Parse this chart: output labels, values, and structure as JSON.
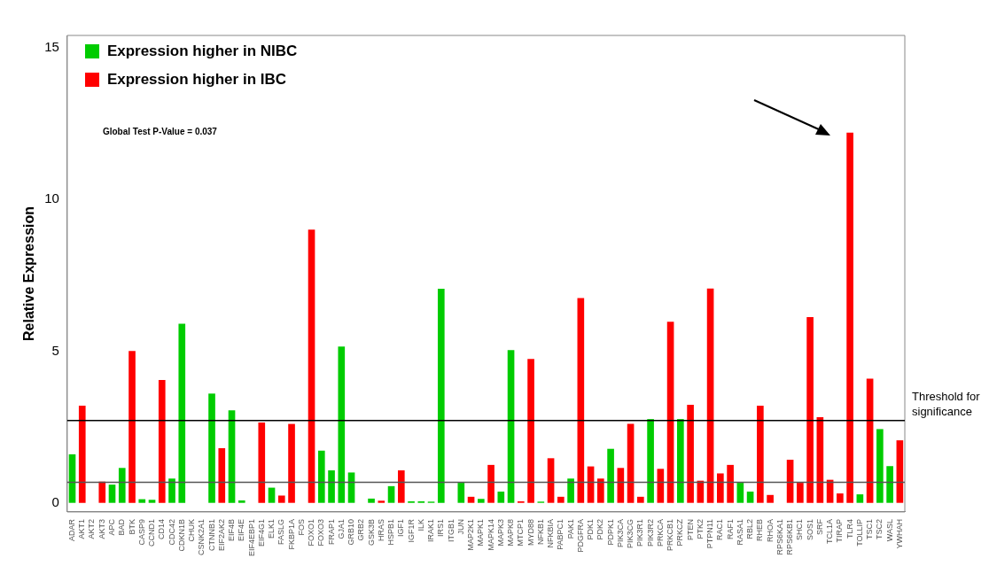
{
  "chart_data": {
    "type": "bar",
    "ylabel": "Relative Expression",
    "categories": [
      "ADAR",
      "AKT1",
      "AKT2",
      "AKT3",
      "APC",
      "BAD",
      "BTK",
      "CASP9",
      "CCND1",
      "CD14",
      "CDC42",
      "CDKN1B",
      "CHUK",
      "CSNK2A1",
      "CTNNB1",
      "EIF2AK2",
      "EIF4B",
      "EIF4E",
      "EIF4EBP1",
      "EIF4G1",
      "ELK1",
      "FASLG",
      "FKBP1A",
      "FOS",
      "FOXO1",
      "FOXO3",
      "FRAP1",
      "GJA1",
      "GRB10",
      "GRB2",
      "GSK3B",
      "HRAS",
      "HSPB1",
      "IGF1",
      "IGF1R",
      "ILK",
      "IRAK1",
      "IRS1",
      "ITGB1",
      "JUN",
      "MAP2K1",
      "MAPK1",
      "MAPK14",
      "MAPK3",
      "MAPK8",
      "MTCP1",
      "MYD88",
      "NFKB1",
      "NFKBIA",
      "PABPC1",
      "PAK1",
      "PDGFRA",
      "PDK1",
      "PDK2",
      "PDPK1",
      "PIK3CA",
      "PIK3CG",
      "PIK3R1",
      "PIK3R2",
      "PRKCA",
      "PRKCB1",
      "PRKCZ",
      "PTEN",
      "PTK2",
      "PTPN11",
      "RAC1",
      "RAF1",
      "RASA1",
      "RBL2",
      "RHEB",
      "RHOA",
      "RPS6KA1",
      "RPS6KB1",
      "SHC1",
      "SOS1",
      "SRF",
      "TCL1A",
      "TIRAP",
      "TLR4",
      "TOLLIP",
      "TSC1",
      "TSC2",
      "WASL",
      "YWHAH"
    ],
    "series": [
      {
        "name": "Expression higher in NIBC",
        "color": "#00cc00",
        "values": [
          1.6,
          null,
          null,
          null,
          0.6,
          1.15,
          null,
          0.12,
          0.1,
          null,
          0.8,
          5.9,
          null,
          null,
          3.6,
          null,
          3.05,
          0.08,
          null,
          null,
          0.5,
          null,
          null,
          null,
          null,
          1.72,
          1.07,
          5.15,
          1.0,
          null,
          0.14,
          null,
          0.55,
          null,
          0.05,
          0.05,
          0.04,
          7.05,
          null,
          0.66,
          null,
          0.13,
          null,
          0.37,
          5.03,
          null,
          null,
          0.04,
          null,
          null,
          0.8,
          null,
          null,
          null,
          1.78,
          null,
          null,
          null,
          2.76,
          null,
          null,
          2.76,
          null,
          null,
          null,
          null,
          null,
          0.66,
          0.37,
          null,
          null,
          null,
          null,
          null,
          null,
          null,
          null,
          null,
          null,
          0.28,
          null,
          2.43,
          1.21,
          null
        ]
      },
      {
        "name": "Expression higher in IBC",
        "color": "#ff0000",
        "values": [
          null,
          3.2,
          null,
          0.7,
          null,
          null,
          5.0,
          null,
          null,
          4.05,
          null,
          null,
          null,
          null,
          null,
          1.8,
          null,
          null,
          null,
          2.65,
          null,
          0.24,
          2.6,
          null,
          9.0,
          null,
          null,
          null,
          null,
          null,
          null,
          0.07,
          null,
          1.07,
          null,
          null,
          null,
          null,
          null,
          null,
          0.2,
          null,
          1.25,
          null,
          null,
          0.05,
          4.74,
          null,
          1.47,
          0.2,
          null,
          6.75,
          1.2,
          0.8,
          null,
          1.15,
          2.6,
          0.2,
          null,
          1.12,
          5.97,
          null,
          3.23,
          0.73,
          7.06,
          0.97,
          1.25,
          null,
          null,
          3.2,
          0.26,
          null,
          1.42,
          0.66,
          6.12,
          2.82,
          0.76,
          0.31,
          12.2,
          null,
          4.09,
          null,
          null,
          2.06
        ]
      }
    ],
    "ylim": [
      -0.3,
      15.4
    ],
    "yticks": [
      0,
      5,
      10,
      15
    ],
    "ref_lines": [
      {
        "axis": "y",
        "value": 2.71,
        "label": "Threshold for significance",
        "color": "#000000"
      },
      {
        "axis": "y",
        "value": 0.68,
        "color": "#555555"
      }
    ],
    "annotations": [
      "Global Test P-Value = 0.037"
    ],
    "legend": "top left"
  }
}
